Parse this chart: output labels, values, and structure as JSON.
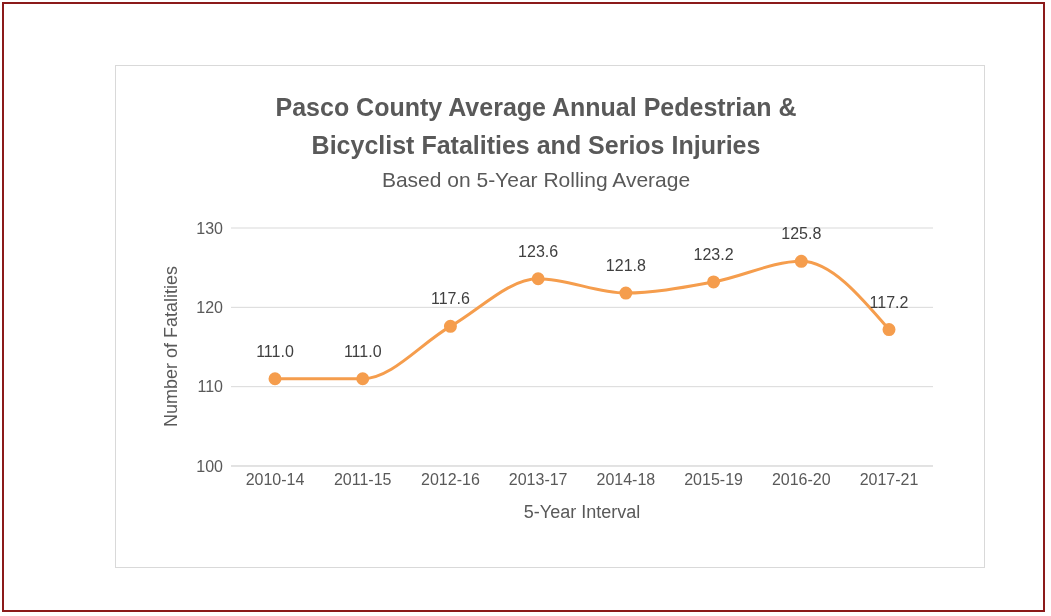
{
  "chart_data": {
    "type": "line",
    "title": "Pasco County Average Annual Pedestrian & Bicyclist Fatalities and Serios Injuries",
    "subtitle": "Based on 5-Year Rolling Average",
    "xlabel": "5-Year Interval",
    "ylabel": "Number of Fatalities",
    "categories": [
      "2010-14",
      "2011-15",
      "2012-16",
      "2013-17",
      "2014-18",
      "2015-19",
      "2016-20",
      "2017-21"
    ],
    "series": [
      {
        "color": "#f59d4d",
        "values": [
          111.0,
          111.0,
          117.6,
          123.6,
          121.8,
          123.2,
          125.8,
          117.2
        ],
        "value_labels": [
          "111.0",
          "111.0",
          "117.6",
          "123.6",
          "121.8",
          "123.2",
          "125.8",
          "117.2"
        ]
      }
    ],
    "ylim": [
      100,
      130
    ],
    "yticks": [
      100,
      110,
      120,
      130
    ],
    "grid": "y",
    "marker": "circle",
    "line_style": "solid"
  }
}
